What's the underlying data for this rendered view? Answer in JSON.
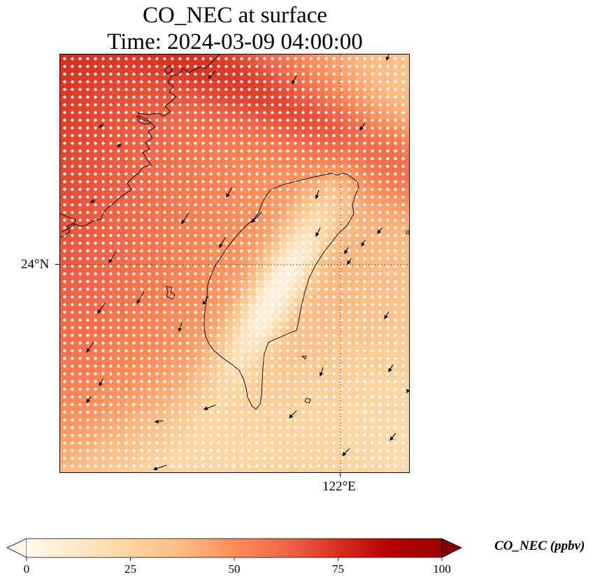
{
  "title": {
    "line1": "CO_NEC at surface",
    "line2": "Time: 2024-03-09 04:00:00"
  },
  "map": {
    "lat_tick_label": "24°N",
    "lon_tick_label": "122°E",
    "land_outline": "Taiwan and the coast of mainland China",
    "overlay": "wind vectors (arrows)",
    "field_description": "CO_NEC concentration, high (~70–90 ppbv) in the west and NE, low (~10–35 ppbv) over the Taiwan central mountain range and the south"
  },
  "colorbar": {
    "label": "CO_NEC (ppbv)",
    "ticks": [
      "0",
      "25",
      "50",
      "75",
      "100"
    ],
    "min": 0,
    "max": 100,
    "extend": "both",
    "colormap": "OrRd",
    "colors": [
      "#fff7ec",
      "#fee8c8",
      "#fdd49e",
      "#fdbb84",
      "#fc8d59",
      "#ef6548",
      "#d7301f",
      "#b30000",
      "#7f0000"
    ]
  }
}
